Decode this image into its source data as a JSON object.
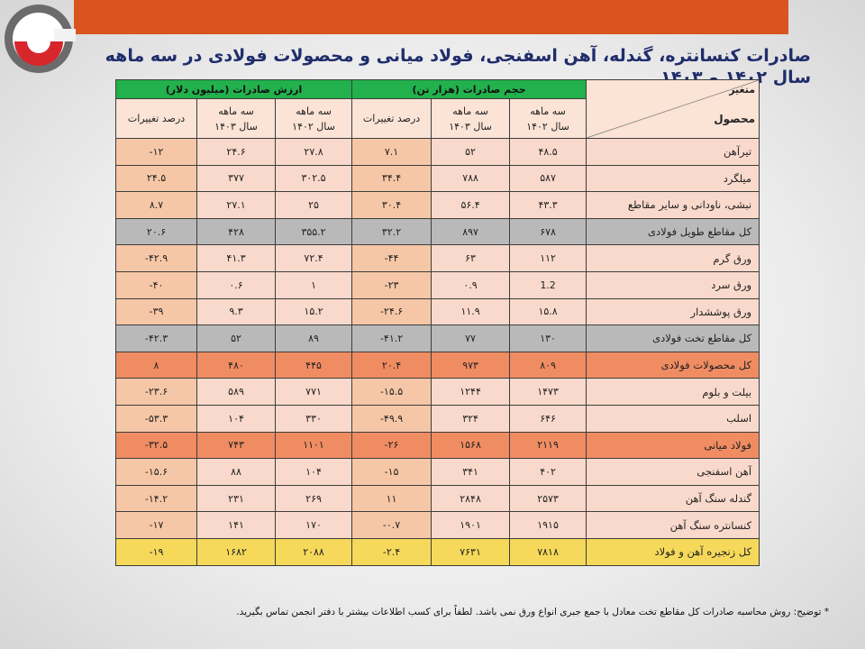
{
  "title": "صادرات کنسانتره، گندله، آهن اسفنجی، فولاد میانی و محصولات فولادی در سه ماهه سال ۱۴۰۲ و ۱۴۰۳",
  "colors": {
    "top_bar": "#d9541e",
    "header_green": "#22b14c",
    "total_gray": "#b9b9b9",
    "total_orange": "#f08c62",
    "grand_total_yellow": "#f6d95a",
    "title": "#1f2d6b"
  },
  "header": {
    "variable": "متغیر",
    "product": "محصول",
    "volume_group": "حجم صادرات (هزار تن)",
    "value_group": "ارزش صادرات (میلیون دلار)",
    "q1402_line1": "سه ماهه",
    "q1402_line2": "سال ۱۴۰۲",
    "q1403_line1": "سه ماهه",
    "q1403_line2": "سال ۱۴۰۳",
    "change": "درصد تغییرات"
  },
  "rows": [
    {
      "product": "تیرآهن",
      "vol_1402": "۴۸.۵",
      "vol_1403": "۵۲",
      "vol_change": "۷.۱",
      "val_1402": "۲۷.۸",
      "val_1403": "۲۴.۶",
      "val_change": "-۱۲",
      "style": "normal"
    },
    {
      "product": "میلگرد",
      "vol_1402": "۵۸۷",
      "vol_1403": "۷۸۸",
      "vol_change": "۳۴.۴",
      "val_1402": "۳۰۲.۵",
      "val_1403": "۳۷۷",
      "val_change": "۲۴.۵",
      "style": "normal"
    },
    {
      "product": "نبشی، ناودانی و سایر مقاطع",
      "vol_1402": "۴۳.۳",
      "vol_1403": "۵۶.۴",
      "vol_change": "۳۰.۴",
      "val_1402": "۲۵",
      "val_1403": "۲۷.۱",
      "val_change": "۸.۷",
      "style": "normal"
    },
    {
      "product": "کل مقاطع طویل فولادی",
      "vol_1402": "۶۷۸",
      "vol_1403": "۸۹۷",
      "vol_change": "۳۲.۲",
      "val_1402": "۳۵۵.۲",
      "val_1403": "۴۲۸",
      "val_change": "۲۰.۶",
      "style": "gray"
    },
    {
      "product": "ورق گرم",
      "vol_1402": "۱۱۲",
      "vol_1403": "۶۳",
      "vol_change": "-۴۴",
      "val_1402": "۷۲.۴",
      "val_1403": "۴۱.۳",
      "val_change": "-۴۲.۹",
      "style": "normal"
    },
    {
      "product": "ورق سرد",
      "vol_1402": "1.2",
      "vol_1403": "۰.۹",
      "vol_change": "-۲۳",
      "val_1402": "۱",
      "val_1403": "۰.۶",
      "val_change": "-۴۰",
      "style": "normal"
    },
    {
      "product": "ورق پوششدار",
      "vol_1402": "۱۵.۸",
      "vol_1403": "۱۱.۹",
      "vol_change": "-۲۴.۶",
      "val_1402": "۱۵.۲",
      "val_1403": "۹.۳",
      "val_change": "-۳۹",
      "style": "normal"
    },
    {
      "product": "کل مقاطع تخت فولادی",
      "vol_1402": "۱۳۰",
      "vol_1403": "۷۷",
      "vol_change": "-۴۱.۲",
      "val_1402": "۸۹",
      "val_1403": "۵۲",
      "val_change": "-۴۲.۳",
      "style": "gray"
    },
    {
      "product": "کل محصولات فولادی",
      "vol_1402": "۸۰۹",
      "vol_1403": "۹۷۳",
      "vol_change": "۲۰.۴",
      "val_1402": "۴۴۵",
      "val_1403": "۴۸۰",
      "val_change": "۸",
      "style": "orange"
    },
    {
      "product": "بیلت و بلوم",
      "vol_1402": "۱۴۷۳",
      "vol_1403": "۱۲۴۴",
      "vol_change": "-۱۵.۵",
      "val_1402": "۷۷۱",
      "val_1403": "۵۸۹",
      "val_change": "-۲۳.۶",
      "style": "normal"
    },
    {
      "product": "اسلب",
      "vol_1402": "۶۴۶",
      "vol_1403": "۳۲۴",
      "vol_change": "-۴۹.۹",
      "val_1402": "۳۳۰",
      "val_1403": "۱۰۴",
      "val_change": "-۵۳.۳",
      "style": "normal"
    },
    {
      "product": "فولاد میانی",
      "vol_1402": "۲۱۱۹",
      "vol_1403": "۱۵۶۸",
      "vol_change": "-۲۶",
      "val_1402": "۱۱۰۱",
      "val_1403": "۷۴۳",
      "val_change": "-۳۲.۵",
      "style": "orange"
    },
    {
      "product": "آهن اسفنجی",
      "vol_1402": "۴۰۲",
      "vol_1403": "۳۴۱",
      "vol_change": "-۱۵",
      "val_1402": "۱۰۴",
      "val_1403": "۸۸",
      "val_change": "-۱۵.۶",
      "style": "normal"
    },
    {
      "product": "گندله سنگ آهن",
      "vol_1402": "۲۵۷۳",
      "vol_1403": "۲۸۴۸",
      "vol_change": "۱۱",
      "val_1402": "۲۶۹",
      "val_1403": "۲۳۱",
      "val_change": "-۱۴.۲",
      "style": "normal"
    },
    {
      "product": "کنسانتره سنگ آهن",
      "vol_1402": "۱۹۱۵",
      "vol_1403": "۱۹۰۱",
      "vol_change": "-۰.۷",
      "val_1402": "۱۷۰",
      "val_1403": "۱۴۱",
      "val_change": "-۱۷",
      "style": "normal"
    },
    {
      "product": "کل زنجیره آهن و فولاد",
      "vol_1402": "۷۸۱۸",
      "vol_1403": "۷۶۳۱",
      "vol_change": "-۲.۴",
      "val_1402": "۲۰۸۸",
      "val_1403": "۱۶۸۲",
      "val_change": "-۱۹",
      "style": "yellow"
    }
  ],
  "footnote": "* توضیح: روش محاسبه صادرات کل مقاطع تخت معادل با جمع جبری انواع ورق نمی باشد. لطفاً برای کسب اطلاعات بیشتر با دفتر انجمن تماس بگیرید."
}
